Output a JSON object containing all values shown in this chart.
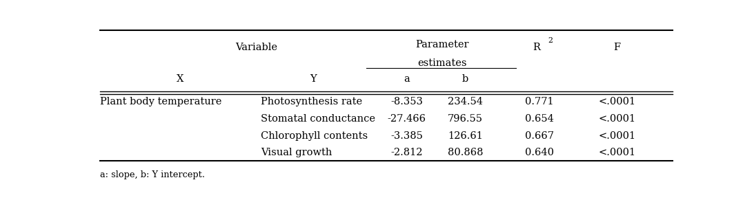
{
  "rows": [
    [
      "Plant body temperature",
      "Photosynthesis rate",
      "-8.353",
      "234.54",
      "0.771",
      "<.0001"
    ],
    [
      "",
      "Stomatal conductance",
      "-27.466",
      "796.55",
      "0.654",
      "<.0001"
    ],
    [
      "",
      "Chlorophyll contents",
      "-3.385",
      "126.61",
      "0.667",
      "<.0001"
    ],
    [
      "",
      "Visual growth",
      "-2.812",
      "80.868",
      "0.640",
      "<.0001"
    ]
  ],
  "footnote": "a: slope, b: Y intercept.",
  "background_color": "#ffffff",
  "line_color": "#000000",
  "font_size": 10.5
}
